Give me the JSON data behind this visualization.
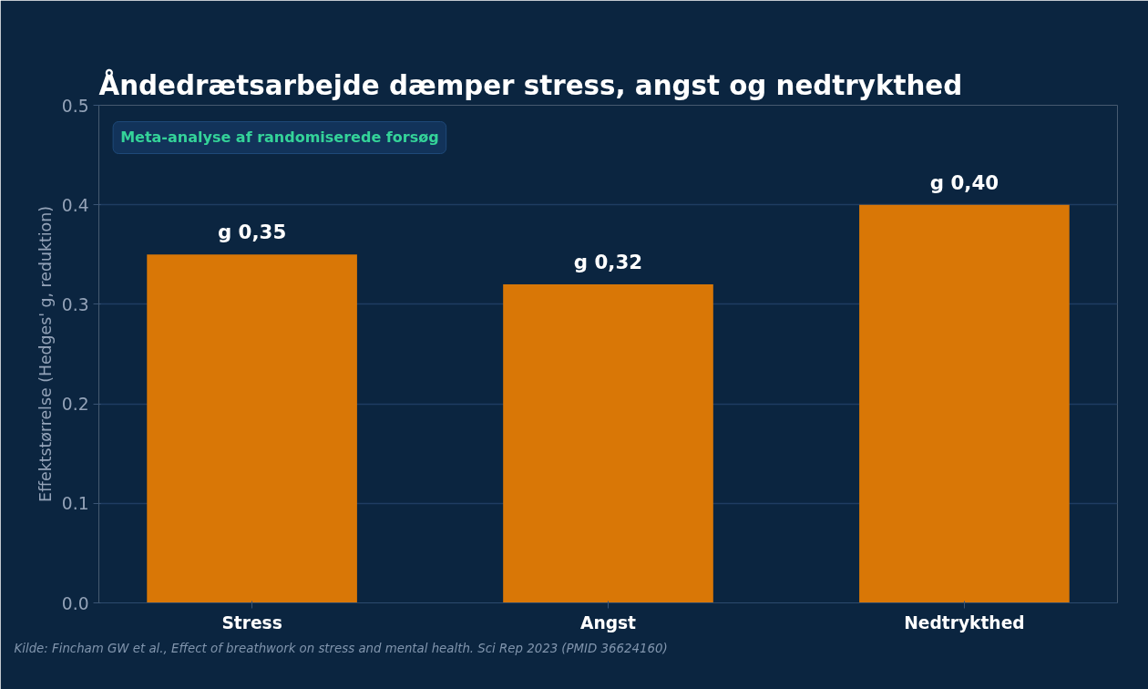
{
  "chart_data": {
    "type": "bar",
    "title": "Åndedrætsarbejde dæmper stress, angst og nedtrykthed",
    "ylabel": "Effektstørrelse (Hedges' g, reduktion)",
    "categories": [
      "Stress",
      "Angst",
      "Nedtrykthed"
    ],
    "values": [
      0.35,
      0.32,
      0.4
    ],
    "color": "#d97706",
    "value_labels": [
      "g 0,35",
      "g 0,32",
      "g 0,40"
    ],
    "ylim": [
      0,
      0.5
    ],
    "yticks": [
      {
        "value": 0,
        "label": "0.0"
      },
      0.1,
      0.2,
      0.3,
      0.4,
      0.5
    ],
    "grid": "y",
    "annotations": [
      "Meta-analyse af randomiserede forsøg",
      "Kilde: Fincham GW et al., Effect of breathwork on stress and mental health. Sci Rep 2023 (PMID 36624160)"
    ]
  }
}
